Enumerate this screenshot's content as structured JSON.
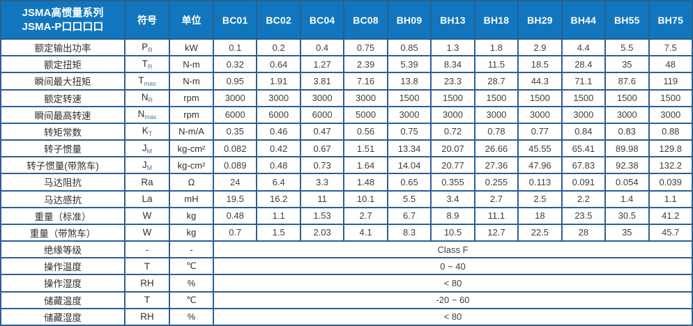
{
  "table": {
    "title_line1": "JSMA高惯量系列",
    "title_line2": "JSMA-P口口口口",
    "symbol_header": "符号",
    "unit_header": "单位",
    "models": [
      "BC01",
      "BC02",
      "BC04",
      "BC08",
      "BH09",
      "BH13",
      "BH18",
      "BH29",
      "BH44",
      "BH55",
      "BH75"
    ],
    "rows": [
      {
        "label": "额定输出功率",
        "sym": "P",
        "sub": "R",
        "unit": "kW",
        "values": [
          "0.1",
          "0.2",
          "0.4",
          "0.75",
          "0.85",
          "1.3",
          "1.8",
          "2.9",
          "4.4",
          "5.5",
          "7.5"
        ]
      },
      {
        "label": "额定扭矩",
        "sym": "T",
        "sub": "R",
        "unit": "N-m",
        "values": [
          "0.32",
          "0.64",
          "1.27",
          "2.39",
          "5.39",
          "8.34",
          "11.5",
          "18.5",
          "28.4",
          "35",
          "48"
        ]
      },
      {
        "label": "瞬间最大扭矩",
        "sym": "T",
        "sub": "max",
        "unit": "N-m",
        "values": [
          "0.95",
          "1.91",
          "3.81",
          "7.16",
          "13.8",
          "23.3",
          "28.7",
          "44.3",
          "71.1",
          "87.6",
          "119"
        ]
      },
      {
        "label": "额定转速",
        "sym": "N",
        "sub": "R",
        "unit": "rpm",
        "values": [
          "3000",
          "3000",
          "3000",
          "3000",
          "1500",
          "1500",
          "1500",
          "1500",
          "1500",
          "1500",
          "1500"
        ]
      },
      {
        "label": "瞬间最高转速",
        "sym": "N",
        "sub": "max",
        "unit": "rpm",
        "values": [
          "6000",
          "6000",
          "6000",
          "5000",
          "3000",
          "3000",
          "3000",
          "3000",
          "3000",
          "3000",
          "3000"
        ]
      },
      {
        "label": "转矩常数",
        "sym": "K",
        "sub": "T",
        "unit": "N-m/A",
        "values": [
          "0.35",
          "0.46",
          "0.47",
          "0.56",
          "0.75",
          "0.72",
          "0.78",
          "0.77",
          "0.84",
          "0.83",
          "0.88"
        ]
      },
      {
        "label": "转子惯量",
        "sym": "J",
        "sub": "M",
        "unit": "kg-cm²",
        "values": [
          "0.082",
          "0.42",
          "0.67",
          "1.51",
          "13.34",
          "20.07",
          "26.66",
          "45.55",
          "65.41",
          "89.98",
          "129.8"
        ]
      },
      {
        "label": "转子惯量(带煞车)",
        "sym": "J",
        "sub": "M",
        "unit": "kg-cm²",
        "values": [
          "0.089",
          "0.48",
          "0.73",
          "1.64",
          "14.04",
          "20.77",
          "27.36",
          "47.96",
          "67.83",
          "92.38",
          "132.2"
        ]
      },
      {
        "label": "马达阻抗",
        "sym": "Ra",
        "sub": "",
        "unit": "Ω",
        "values": [
          "24",
          "6.4",
          "3.3",
          "1.48",
          "0.65",
          "0.355",
          "0.255",
          "0.113",
          "0.091",
          "0.054",
          "0.039"
        ]
      },
      {
        "label": "马达感抗",
        "sym": "La",
        "sub": "",
        "unit": "mH",
        "values": [
          "19.5",
          "16.2",
          "11",
          "10.1",
          "5.5",
          "3.4",
          "2.7",
          "2.5",
          "2.2",
          "1.4",
          "1.1"
        ]
      },
      {
        "label": "重量（标准）",
        "sym": "W",
        "sub": "",
        "unit": "kg",
        "values": [
          "0.48",
          "1.1",
          "1.53",
          "2.7",
          "6.7",
          "8.9",
          "11.1",
          "18",
          "23.5",
          "30.5",
          "41.2"
        ]
      },
      {
        "label": "重量（带煞车）",
        "sym": "W",
        "sub": "",
        "unit": "kg",
        "values": [
          "0.7",
          "1.5",
          "2.03",
          "4.1",
          "8.3",
          "10.5",
          "12.7",
          "22.5",
          "28",
          "35",
          "45.7"
        ]
      },
      {
        "label": "绝缘等级",
        "sym": "-",
        "sub": "",
        "unit": "-",
        "span": "Class F"
      },
      {
        "label": "操作温度",
        "sym": "T",
        "sub": "",
        "unit": "℃",
        "span": "0 ~ 40"
      },
      {
        "label": "操作湿度",
        "sym": "RH",
        "sub": "",
        "unit": "%",
        "span": "< 80"
      },
      {
        "label": "储藏温度",
        "sym": "T",
        "sub": "",
        "unit": "℃",
        "span": "-20 ~ 60"
      },
      {
        "label": "储藏湿度",
        "sym": "RH",
        "sub": "",
        "unit": "%",
        "span": "< 80"
      }
    ]
  },
  "colors": {
    "header_bg": "#1176BD",
    "grid": "#2A5F93",
    "header_text": "#FFFFFF",
    "label_text": "#2F2F2F",
    "value_text": "#3D3D3D"
  }
}
